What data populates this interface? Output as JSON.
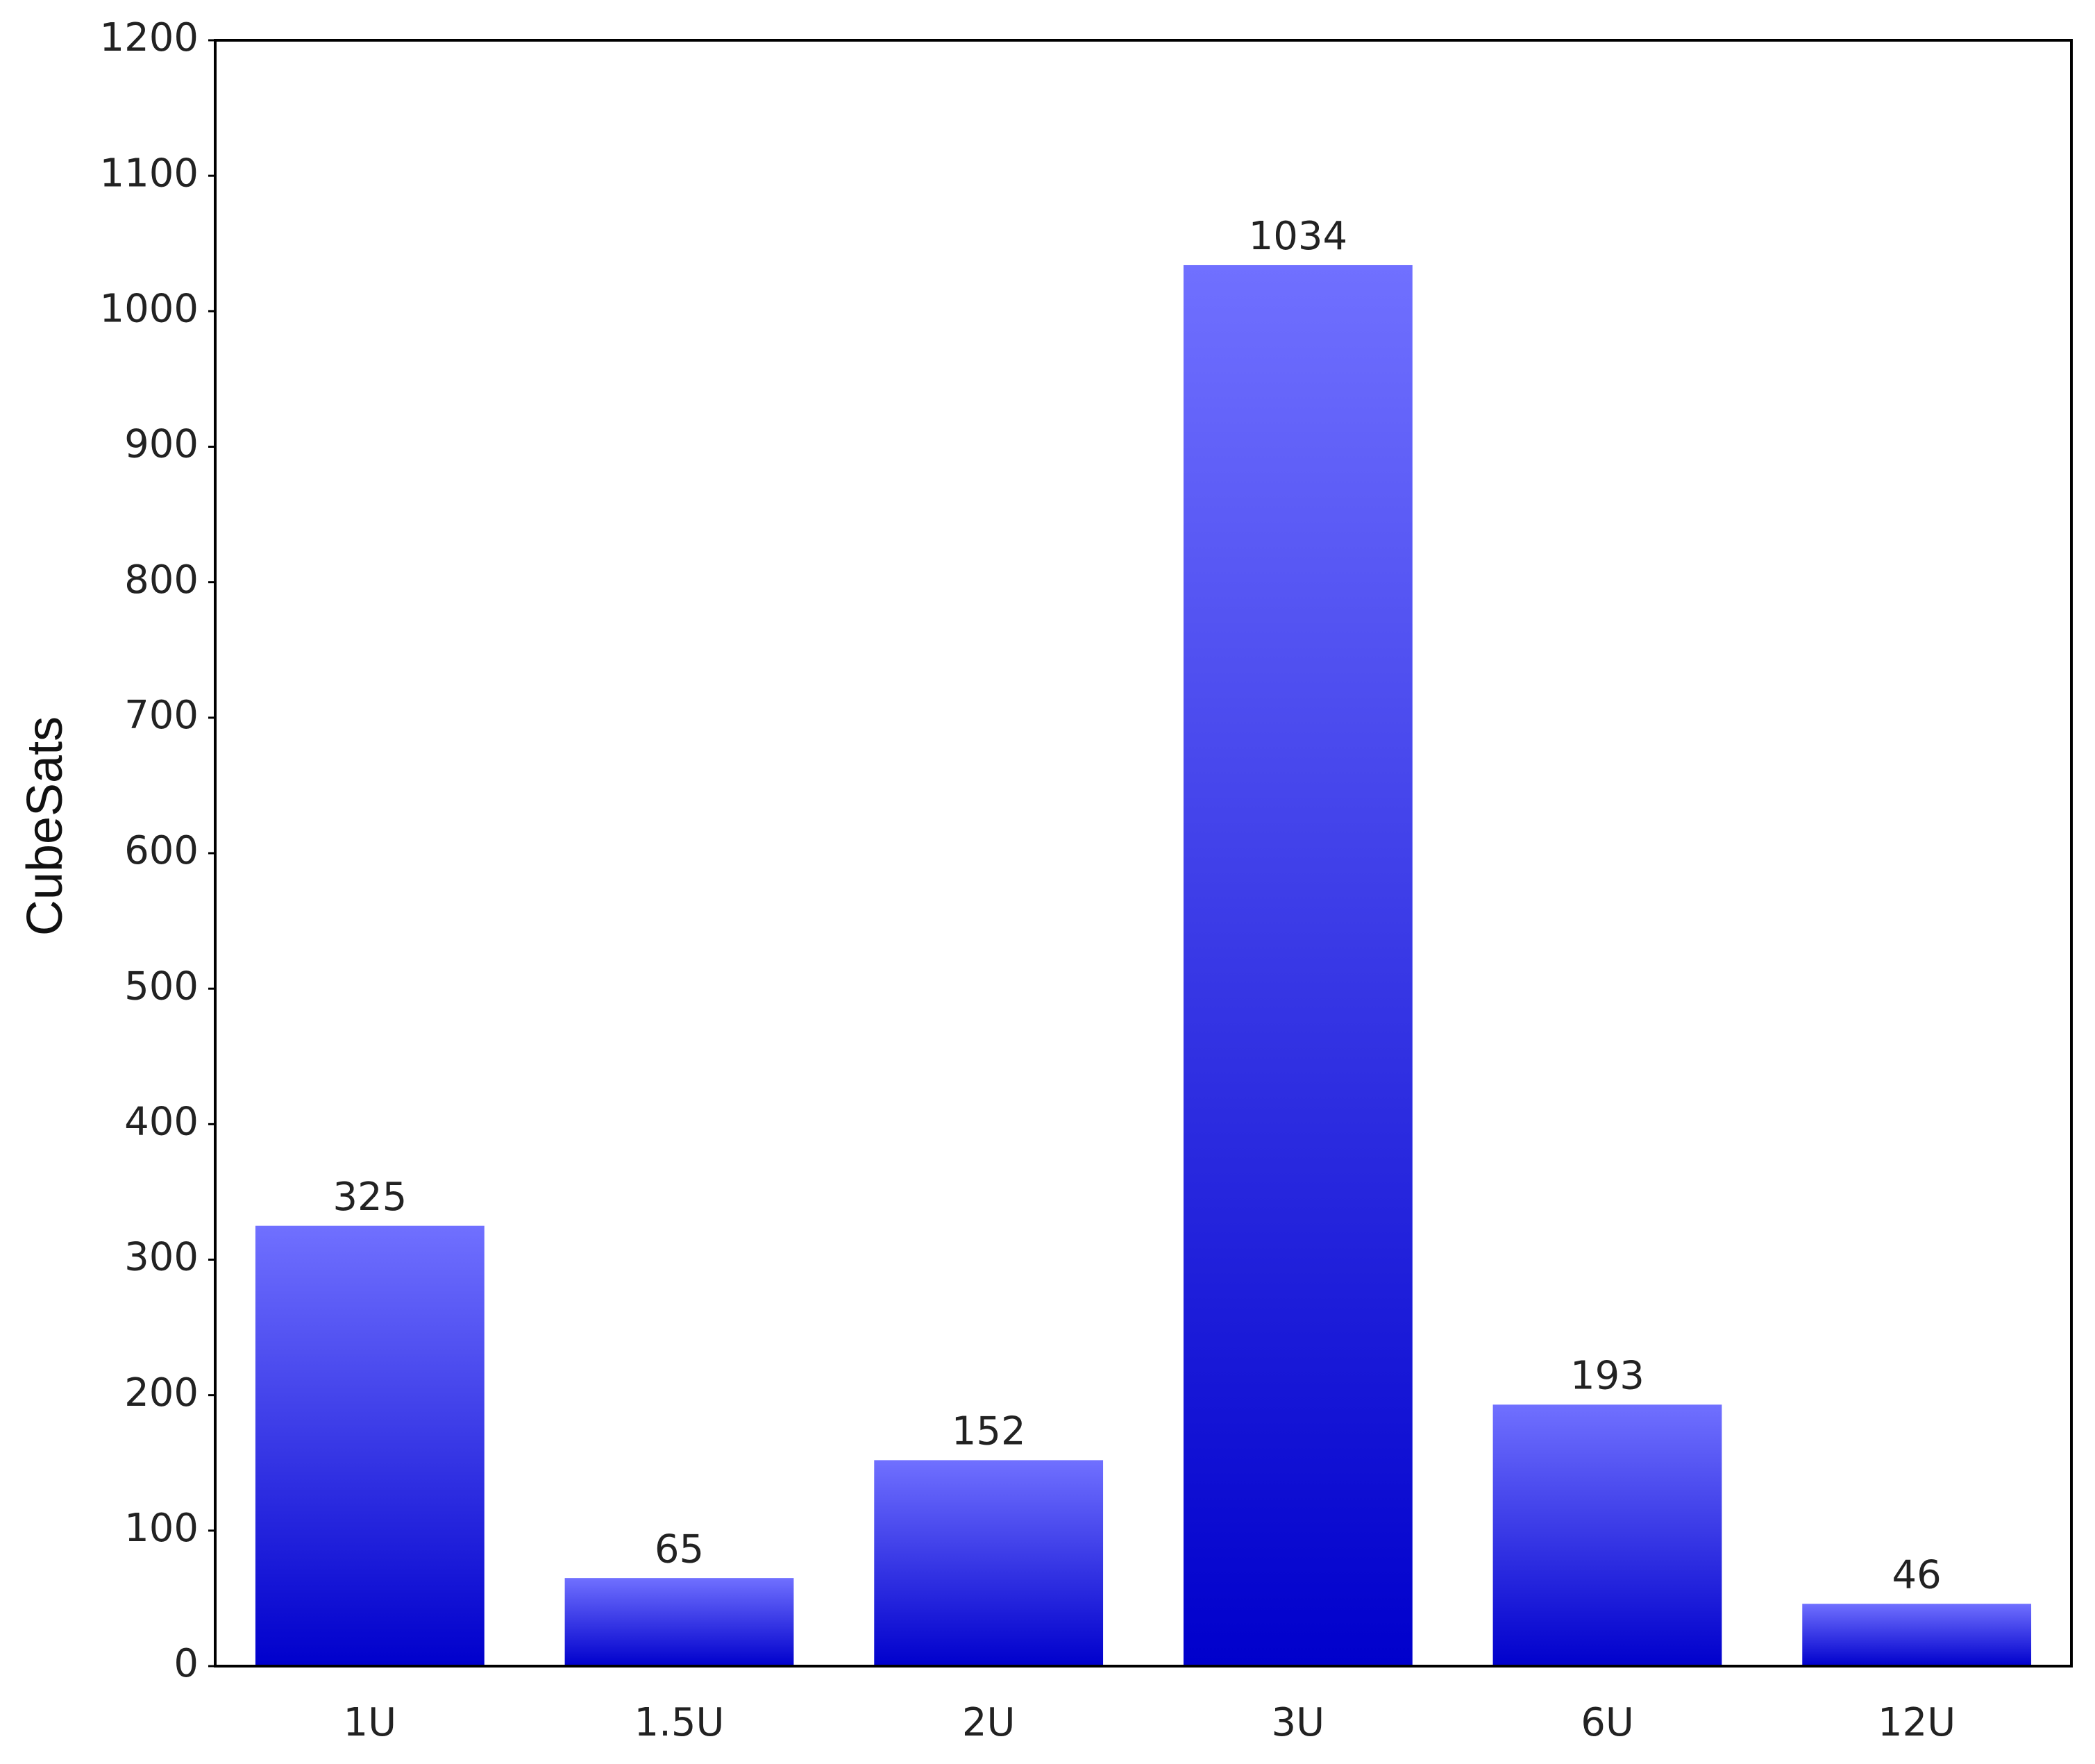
{
  "chart_data": {
    "type": "bar",
    "y_label": "CubeSats",
    "categories": [
      "1U",
      "1.5U",
      "2U",
      "3U",
      "6U",
      "12U"
    ],
    "values": [
      325,
      65,
      152,
      1034,
      193,
      46
    ],
    "color": "#0000cc",
    "highlight_color": "#7070ff",
    "ylim": [
      0,
      1200
    ],
    "yticks": [
      0,
      100,
      200,
      300,
      400,
      500,
      600,
      700,
      800,
      900,
      1000,
      1100,
      1200
    ],
    "grid": false
  }
}
